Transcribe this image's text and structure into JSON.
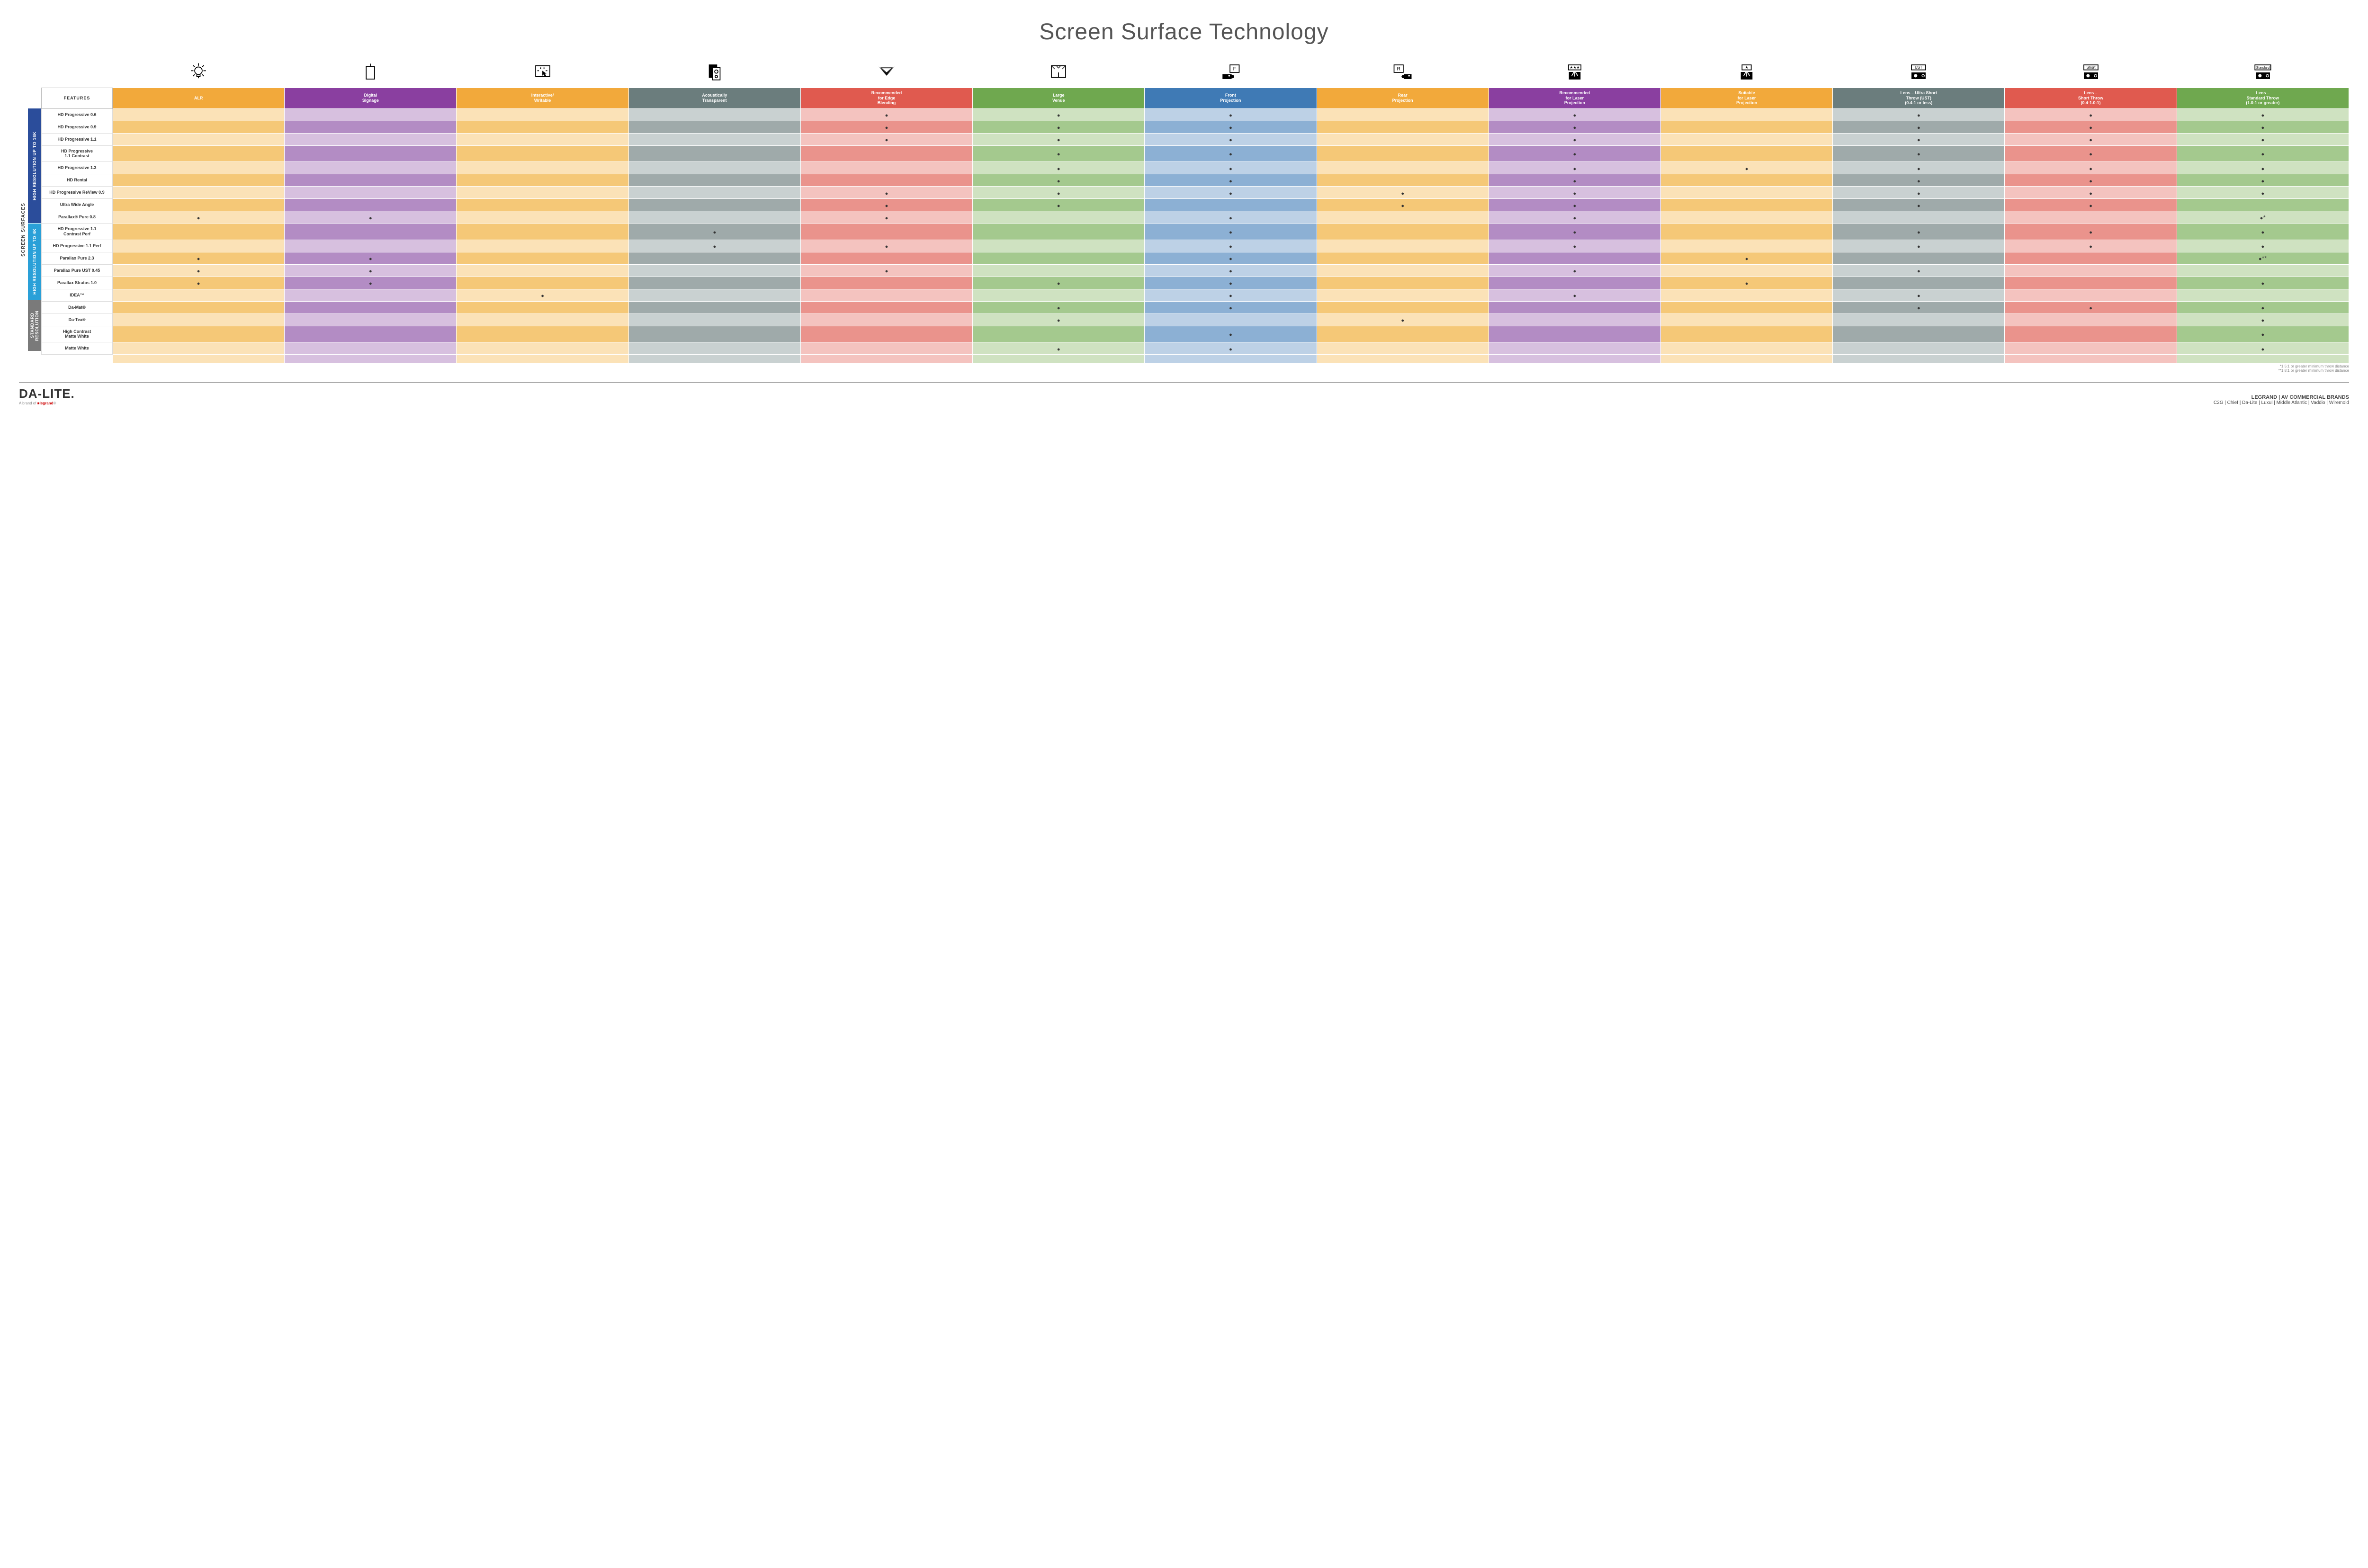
{
  "title": "Screen Surface Technology",
  "sideLabel": "SCREEN SURFACES",
  "featuresHeader": "FEATURES",
  "columns": [
    {
      "key": "alr",
      "label": "ALR",
      "bg": "#f2a93b",
      "light": "#fbe2b7",
      "dark": "#f5c877"
    },
    {
      "key": "signage",
      "label": "Digital\nSignage",
      "bg": "#8a3fa0",
      "light": "#d7c0df",
      "dark": "#b38cc4"
    },
    {
      "key": "interactive",
      "label": "Interactive/\nWritable",
      "bg": "#f2a93b",
      "light": "#fbe2b7",
      "dark": "#f5c877"
    },
    {
      "key": "acoustic",
      "label": "Acoustically\nTransparent",
      "bg": "#6b7d7d",
      "light": "#c9d1d1",
      "dark": "#9faaaa"
    },
    {
      "key": "edge",
      "label": "Recommended\nfor Edge\nBlending",
      "bg": "#e05a4f",
      "light": "#f4c3bf",
      "dark": "#ea938c"
    },
    {
      "key": "venue",
      "label": "Large\nVenue",
      "bg": "#6fa84f",
      "light": "#cfe2c1",
      "dark": "#a4c98e"
    },
    {
      "key": "front",
      "label": "Front\nProjection",
      "bg": "#3f7ab5",
      "light": "#bdd1e6",
      "dark": "#8cb0d4"
    },
    {
      "key": "rear",
      "label": "Rear\nProjection",
      "bg": "#f2a93b",
      "light": "#fbe2b7",
      "dark": "#f5c877"
    },
    {
      "key": "reclaser",
      "label": "Recommended\nfor Laser\nProjection",
      "bg": "#8a3fa0",
      "light": "#d7c0df",
      "dark": "#b38cc4"
    },
    {
      "key": "suitlaser",
      "label": "Suitable\nfor Laser\nProjection",
      "bg": "#f2a93b",
      "light": "#fbe2b7",
      "dark": "#f5c877"
    },
    {
      "key": "ust",
      "label": "Lens – Ultra Short\nThrow (UST)\n(0.4:1 or less)",
      "bg": "#6b7d7d",
      "light": "#c9d1d1",
      "dark": "#9faaaa"
    },
    {
      "key": "short",
      "label": "Lens –\nShort Throw\n(0.4-1.0:1)",
      "bg": "#e05a4f",
      "light": "#f4c3bf",
      "dark": "#ea938c"
    },
    {
      "key": "std",
      "label": "Lens –\nStandard Throw\n(1.0:1 or greater)",
      "bg": "#6fa84f",
      "light": "#cfe2c1",
      "dark": "#a4c98e"
    }
  ],
  "groups": [
    {
      "label": "HIGH RESOLUTION UP TO 16K",
      "bg": "#2b4d9b",
      "rows": [
        {
          "name": "HD Progressive 0.6",
          "marks": {
            "edge": "•",
            "venue": "•",
            "front": "•",
            "reclaser": "•",
            "ust": "•",
            "short": "•",
            "std": "•"
          }
        },
        {
          "name": "HD Progressive 0.9",
          "marks": {
            "edge": "•",
            "venue": "•",
            "front": "•",
            "reclaser": "•",
            "ust": "•",
            "short": "•",
            "std": "•"
          }
        },
        {
          "name": "HD Progressive 1.1",
          "marks": {
            "edge": "•",
            "venue": "•",
            "front": "•",
            "reclaser": "•",
            "ust": "•",
            "short": "•",
            "std": "•"
          }
        },
        {
          "name": "HD Progressive\n1.1 Contrast",
          "marks": {
            "venue": "•",
            "front": "•",
            "reclaser": "•",
            "ust": "•",
            "short": "•",
            "std": "•"
          }
        },
        {
          "name": "HD Progressive 1.3",
          "marks": {
            "venue": "•",
            "front": "•",
            "reclaser": "•",
            "suitlaser": "•",
            "ust": "•",
            "short": "•",
            "std": "•"
          }
        },
        {
          "name": "HD Rental",
          "marks": {
            "venue": "•",
            "front": "•",
            "reclaser": "•",
            "ust": "•",
            "short": "•",
            "std": "•"
          }
        },
        {
          "name": "HD Progressive ReView 0.9",
          "marks": {
            "edge": "•",
            "venue": "•",
            "front": "•",
            "rear": "•",
            "reclaser": "•",
            "ust": "•",
            "short": "•",
            "std": "•"
          }
        },
        {
          "name": "Ultra Wide Angle",
          "marks": {
            "edge": "•",
            "venue": "•",
            "rear": "•",
            "reclaser": "•",
            "ust": "•",
            "short": "•"
          }
        },
        {
          "name": "Parallax® Pure 0.8",
          "marks": {
            "alr": "•",
            "signage": "•",
            "edge": "•",
            "front": "•",
            "reclaser": "•",
            "std": "•*"
          }
        }
      ]
    },
    {
      "label": "HIGH RESOLUTION UP TO 4K",
      "bg": "#2aa0d8",
      "rows": [
        {
          "name": "HD Progressive 1.1\nContrast Perf",
          "marks": {
            "acoustic": "•",
            "front": "•",
            "reclaser": "•",
            "ust": "•",
            "short": "•",
            "std": "•"
          }
        },
        {
          "name": "HD Progressive 1.1 Perf",
          "marks": {
            "acoustic": "•",
            "edge": "•",
            "front": "•",
            "reclaser": "•",
            "ust": "•",
            "short": "•",
            "std": "•"
          }
        },
        {
          "name": "Parallax Pure 2.3",
          "marks": {
            "alr": "•",
            "signage": "•",
            "front": "•",
            "suitlaser": "•",
            "std": "•**"
          }
        },
        {
          "name": "Parallax Pure UST 0.45",
          "marks": {
            "alr": "•",
            "signage": "•",
            "edge": "•",
            "front": "•",
            "reclaser": "•",
            "ust": "•"
          }
        },
        {
          "name": "Parallax Stratos 1.0",
          "marks": {
            "alr": "•",
            "signage": "•",
            "venue": "•",
            "front": "•",
            "suitlaser": "•",
            "std": "•"
          }
        },
        {
          "name": "IDEA™",
          "marks": {
            "interactive": "•",
            "front": "•",
            "reclaser": "•",
            "ust": "•"
          }
        }
      ]
    },
    {
      "label": "STANDARD\nRESOLUTION",
      "bg": "#7a7a7a",
      "rows": [
        {
          "name": "Da-Mat®",
          "marks": {
            "venue": "•",
            "front": "•",
            "ust": "•",
            "short": "•",
            "std": "•"
          }
        },
        {
          "name": "Da-Tex®",
          "marks": {
            "venue": "•",
            "rear": "•",
            "std": "•"
          }
        },
        {
          "name": "High Contrast\nMatte White",
          "marks": {
            "front": "•",
            "std": "•"
          }
        },
        {
          "name": "Matte White",
          "marks": {
            "venue": "•",
            "front": "•",
            "std": "•"
          }
        }
      ]
    }
  ],
  "footnotes": [
    "*1.5:1 or greater minimum throw distance",
    "**1.8:1 or greater minimum throw distance"
  ],
  "footer": {
    "logo": "DA-LITE.",
    "logoSub": "A brand of",
    "logoBrand": "legrand",
    "brandsTitle": "LEGRAND | AV COMMERCIAL BRANDS",
    "brands": "C2G  |  Chief  |  Da-Lite  |  Luxul  |  Middle Atlantic  |  Vaddio  |  Wiremold"
  },
  "iconSvgs": {
    "alr": "<svg viewBox='0 0 50 50' fill='none' stroke='#000' stroke-width='2'><circle cx='25' cy='22' r='9'/><line x1='25' y1='4' x2='25' y2='10'/><line x1='25' y1='34' x2='25' y2='40'/><line x1='7' y1='22' x2='13' y2='22'/><line x1='37' y1='22' x2='43' y2='22'/><line x1='12' y1='9' x2='16' y2='13'/><line x1='34' y1='31' x2='38' y2='35'/><line x1='12' y1='35' x2='16' y2='31'/><line x1='34' y1='13' x2='38' y2='9'/><path d='M21 31 L21 36 L29 36 L29 31'/></svg>",
    "signage": "<svg viewBox='0 0 50 50' fill='none' stroke='#000' stroke-width='2'><rect x='15' y='12' width='20' height='30'/><line x1='25' y1='12' x2='25' y2='5'/></svg>",
    "interactive": "<svg viewBox='0 0 50 50' fill='none' stroke='#000' stroke-width='2'><rect x='8' y='10' width='34' height='26'/><path d='M24 22 L24 34 L27 31 L30 36 L33 34 L30 29 L34 29 Z' fill='#000' stroke='none'/><line x1='20' y1='18' x2='20' y2='14'/><line x1='28' y1='18' x2='28' y2='14'/><line x1='16' y1='22' x2='12' y2='22'/><line x1='32' y1='22' x2='36' y2='22'/></svg>",
    "acoustic": "<svg viewBox='0 0 50 50' fill='none' stroke='#000' stroke-width='2'><rect x='12' y='8' width='18' height='30' fill='#000'/><rect x='20' y='14' width='18' height='30' fill='#fff'/><circle cx='29' cy='24' r='4'/><circle cx='29' cy='36' r='3'/></svg>",
    "edge": "<svg viewBox='0 0 50 50' fill='#000'><polygon points='6,12 44,12 25,34'/><polygon points='6,12 44,12 25,30' fill='#fff'/><polygon points='10,14 40,14 25,30'/><polygon points='14,16 36,16 25,26' fill='#fff'/></svg>",
    "venue": "<svg viewBox='0 0 50 50' fill='none' stroke='#000' stroke-width='2'><rect x='8' y='10' width='34' height='28'/><path d='M8 10 L16 18 M20 10 L25 16 M30 10 L25 16 M42 10 L34 18' stroke-width='1.5'/><line x1='25' y1='38' x2='25' y2='26'/></svg>",
    "front": "<svg viewBox='0 0 50 50' fill='#000'><rect x='24' y='8' width='22' height='18' fill='none' stroke='#000' stroke-width='2'/><text x='35' y='21' font-size='12' text-anchor='middle' font-family='Arial'>F</text><rect x='6' y='30' width='22' height='12'/><circle cx='30' cy='36' r='4'/><circle cx='22' cy='34' r='2' fill='#fff'/></svg>",
    "rear": "<svg viewBox='0 0 50 50' fill='#000'><rect x='4' y='8' width='22' height='18' fill='none' stroke='#000' stroke-width='2'/><text x='15' y='21' font-size='12' text-anchor='middle' font-family='Arial'>R</text><rect x='28' y='30' width='18' height='12'/><circle cx='26' cy='36' r='4'/><circle cx='40' cy='34' r='2' fill='#fff'/></svg>",
    "reclaser": "<svg viewBox='0 0 50 50' fill='none' stroke='#000' stroke-width='2'><rect x='10' y='8' width='30' height='12'/><text x='25' y='17' font-size='9' text-anchor='middle' fill='#000' stroke='none'>★★★</text><rect x='12' y='26' width='26' height='16' fill='#000'/><path d='M25 22 L18 34 M25 22 L32 34 M25 22 L25 36' stroke='#fff'/></svg>",
    "suitlaser": "<svg viewBox='0 0 50 50' fill='none' stroke='#000' stroke-width='2'><rect x='14' y='8' width='22' height='12'/><text x='25' y='17' font-size='10' text-anchor='middle' fill='#000' stroke='none'>★</text><rect x='12' y='26' width='26' height='16' fill='#000'/><path d='M25 22 L18 34 M25 22 L32 34 M25 22 L25 36' stroke='#fff'/></svg>",
    "ust": "<svg viewBox='0 0 50 50' fill='#000'><rect x='8' y='8' width='34' height='12' fill='#fff' stroke='#000' stroke-width='2'/><text x='25' y='17' font-size='9' text-anchor='middle'>UST</text><rect x='8' y='26' width='34' height='16'/><circle cx='18' cy='34' r='4' fill='#fff'/><circle cx='36' cy='34' r='3' fill='none' stroke='#fff' stroke-width='1.5'/></svg>",
    "short": "<svg viewBox='0 0 50 50' fill='#000'><rect x='8' y='8' width='34' height='12' fill='#fff' stroke='#000' stroke-width='2'/><text x='25' y='17' font-size='9' text-anchor='middle'>Short</text><rect x='8' y='26' width='34' height='16'/><circle cx='18' cy='34' r='4' fill='#fff'/><circle cx='36' cy='34' r='3' fill='none' stroke='#fff' stroke-width='1.5'/></svg>",
    "std": "<svg viewBox='0 0 50 50' fill='#000'><rect x='6' y='8' width='38' height='12' fill='#fff' stroke='#000' stroke-width='2'/><text x='25' y='17' font-size='8' text-anchor='middle'>Standard</text><rect x='8' y='26' width='34' height='16'/><circle cx='18' cy='34' r='4' fill='#fff'/><circle cx='36' cy='34' r='3' fill='none' stroke='#fff' stroke-width='1.5'/></svg>"
  }
}
